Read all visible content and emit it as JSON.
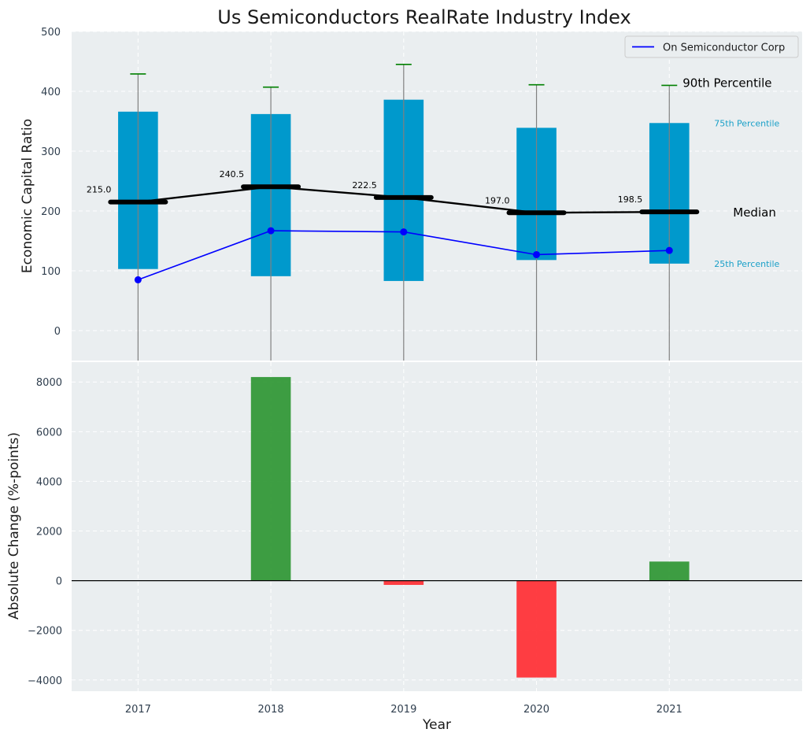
{
  "chart_data": [
    {
      "type": "box",
      "title": "Us Semiconductors RealRate Industry Index",
      "ylabel": "Economic Capital Ratio",
      "ylim": [
        -50,
        500
      ],
      "yticks": [
        0,
        100,
        200,
        300,
        400,
        500
      ],
      "grid": true,
      "categories": [
        "2017",
        "2018",
        "2019",
        "2020",
        "2021"
      ],
      "boxes": [
        {
          "year": "2017",
          "p25": 103,
          "median": 215.0,
          "p75": 366,
          "p90": 429
        },
        {
          "year": "2018",
          "p25": 91,
          "median": 240.5,
          "p75": 362,
          "p90": 407
        },
        {
          "year": "2019",
          "p25": 83,
          "median": 222.5,
          "p75": 386,
          "p90": 445
        },
        {
          "year": "2020",
          "p25": 118,
          "median": 197.0,
          "p75": 339,
          "p90": 411
        },
        {
          "year": "2021",
          "p25": 112,
          "median": 198.5,
          "p75": 347,
          "p90": 410
        }
      ],
      "median_labels": [
        "215.0",
        "240.5",
        "222.5",
        "197.0",
        "198.5"
      ],
      "series": [
        {
          "name": "On Semiconductor Corp",
          "values": [
            85,
            167,
            165,
            127,
            134
          ]
        }
      ],
      "annotations": {
        "p90": "90th Percentile",
        "p75": "75th Percentile",
        "median": "Median",
        "p25": "25th Percentile"
      },
      "legend_position": "top-right"
    },
    {
      "type": "bar",
      "xlabel": "Year",
      "ylabel": "Absolute Change (%-points)",
      "ylim": [
        -4450,
        8800
      ],
      "yticks": [
        -4000,
        -2000,
        0,
        2000,
        4000,
        6000,
        8000
      ],
      "ytick_labels": [
        "−4000",
        "−2000",
        "0",
        "2000",
        "4000",
        "6000",
        "8000"
      ],
      "grid": true,
      "categories": [
        "2017",
        "2018",
        "2019",
        "2020",
        "2021"
      ],
      "values": [
        0,
        8200,
        -170,
        -3900,
        770
      ]
    }
  ],
  "colors": {
    "background": "#eaeef0",
    "box": "#0099cc",
    "median": "#000000",
    "whisker": "#808080",
    "p90_cap": "#008000",
    "series": "#0000ff",
    "positive": "#2e9633",
    "negative": "#ff2e33",
    "pct_75_25": "#1aa0c8",
    "axis_text": "#2f3e4e"
  }
}
